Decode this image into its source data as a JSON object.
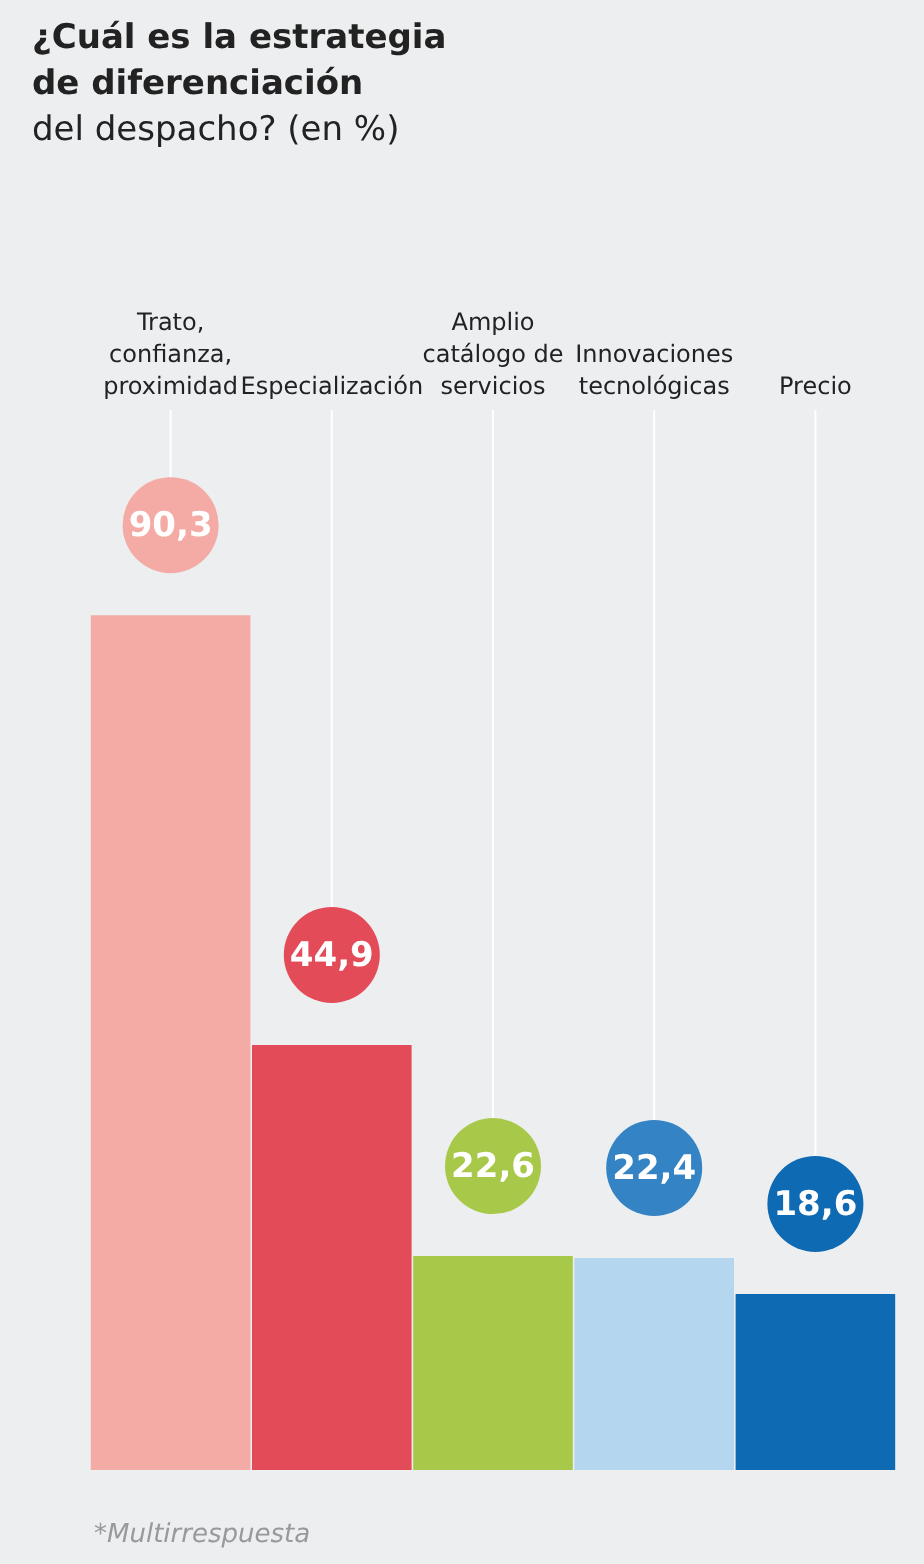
{
  "chart_data": {
    "type": "bar",
    "title": "¿Cuál es la estrategia de diferenciación",
    "subtitle": "del despacho? (en %)",
    "categories": [
      "Trato, confianza, proximidad",
      "Especialización",
      "Amplio catálogo de servicios",
      "Innovaciones tecnológicas",
      "Precio"
    ],
    "values": [
      90.3,
      44.9,
      22.6,
      22.4,
      18.6
    ],
    "colors": [
      "#f4aaa5",
      "#e34b58",
      "#a8c84a",
      "#b4d6ee",
      "#0f6ab4"
    ],
    "value_labels": [
      "90,3",
      "44,9",
      "22,6",
      "22,4",
      "18,6"
    ],
    "grid": "x",
    "annotations": [
      "*Multirrespuesta"
    ]
  }
}
